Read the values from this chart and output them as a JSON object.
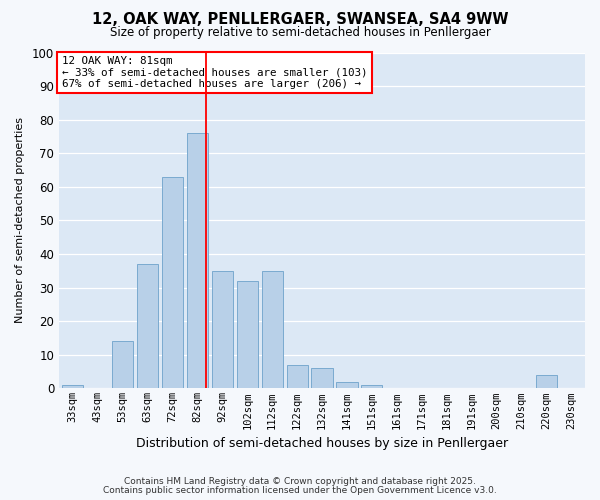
{
  "title": "12, OAK WAY, PENLLERGAER, SWANSEA, SA4 9WW",
  "subtitle": "Size of property relative to semi-detached houses in Penllergaer",
  "xlabel": "Distribution of semi-detached houses by size in Penllergaer",
  "ylabel": "Number of semi-detached properties",
  "bar_labels": [
    "33sqm",
    "43sqm",
    "53sqm",
    "63sqm",
    "72sqm",
    "82sqm",
    "92sqm",
    "102sqm",
    "112sqm",
    "122sqm",
    "132sqm",
    "141sqm",
    "151sqm",
    "161sqm",
    "171sqm",
    "181sqm",
    "191sqm",
    "200sqm",
    "210sqm",
    "220sqm",
    "230sqm"
  ],
  "bar_values": [
    1,
    0,
    14,
    37,
    63,
    76,
    35,
    32,
    35,
    7,
    6,
    2,
    1,
    0,
    0,
    0,
    0,
    0,
    0,
    4,
    0
  ],
  "bar_color": "#b8d0e8",
  "bar_edge_color": "#7aaad0",
  "bg_color": "#dce8f5",
  "grid_color": "#ffffff",
  "fig_bg_color": "#f5f8fc",
  "reference_line_label": "12 OAK WAY: 81sqm",
  "annotation_smaller": "← 33% of semi-detached houses are smaller (103)",
  "annotation_larger": "67% of semi-detached houses are larger (206) →",
  "ylim": [
    0,
    100
  ],
  "yticks": [
    0,
    10,
    20,
    30,
    40,
    50,
    60,
    70,
    80,
    90,
    100
  ],
  "footer1": "Contains HM Land Registry data © Crown copyright and database right 2025.",
  "footer2": "Contains public sector information licensed under the Open Government Licence v3.0.",
  "ref_bar_index": 5
}
